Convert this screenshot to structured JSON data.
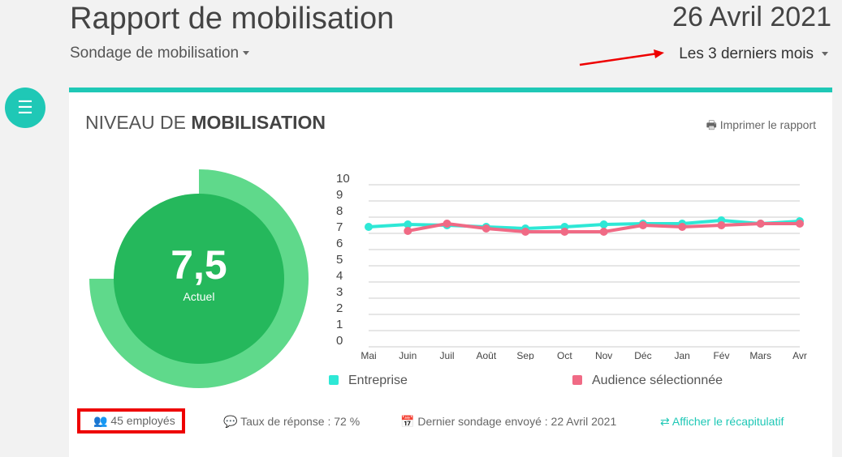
{
  "header": {
    "title": "Rapport de mobilisation",
    "date": "26 Avril 2021",
    "survey_select": "Sondage de mobilisation",
    "period_select": "Les 3 derniers mois"
  },
  "card": {
    "title_prefix": "NIVEAU DE ",
    "title_bold": "MOBILISATION",
    "print_label": "Imprimer le rapport"
  },
  "gauge": {
    "value": "7,5",
    "label": "Actuel",
    "fraction": 0.75
  },
  "footer": {
    "employees": "45 employés",
    "response_rate": "Taux de réponse : 72 %",
    "last_survey": "Dernier sondage envoyé : 22 Avril 2021",
    "summary_link": "Afficher le récapitulatif"
  },
  "colors": {
    "accent": "#1fc8b6",
    "entreprise": "#2ee8d6",
    "audience": "#f06a85",
    "gauge_outer": "#5fd98b",
    "gauge_inner": "#25b85c"
  },
  "chart_data": {
    "type": "line",
    "categories": [
      "Mai",
      "Juin",
      "Juil",
      "Août",
      "Sep",
      "Oct",
      "Nov",
      "Déc",
      "Jan",
      "Fév",
      "Mars",
      "Avr"
    ],
    "ylim": [
      0,
      10
    ],
    "yticks": [
      "0",
      "1",
      "2",
      "3",
      "4",
      "5",
      "6",
      "7",
      "8",
      "9",
      "10"
    ],
    "series": [
      {
        "name": "Entreprise",
        "color": "#2ee8d6",
        "values": [
          7.4,
          7.55,
          7.5,
          7.4,
          7.3,
          7.4,
          7.55,
          7.6,
          7.6,
          7.8,
          7.6,
          7.75
        ]
      },
      {
        "name": "Audience sélectionnée",
        "color": "#f06a85",
        "values": [
          null,
          7.15,
          7.6,
          7.3,
          7.1,
          7.1,
          7.1,
          7.5,
          7.4,
          7.5,
          7.6,
          7.6
        ]
      }
    ],
    "legend": "bottom"
  }
}
